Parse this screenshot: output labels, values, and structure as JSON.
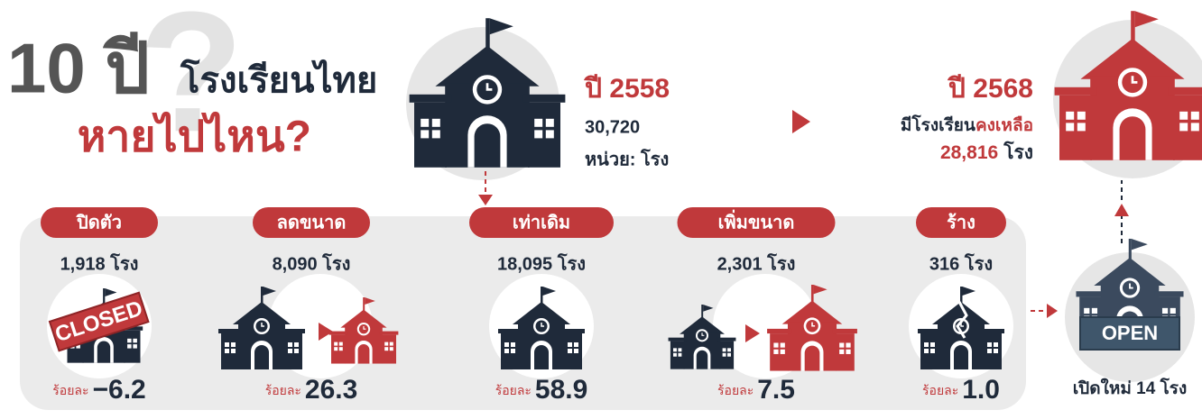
{
  "header": {
    "number": "10 ปี",
    "text": "โรงเรียนไทย",
    "question": "หายไปไหน?"
  },
  "start": {
    "year": "ปี 2558",
    "count": "30,720",
    "unit": "หน่วย: โรง"
  },
  "end": {
    "year": "ปี 2568",
    "label": "มีโรงเรียน",
    "label_highlight": "คงเหลือ",
    "count": "28,816",
    "unit": "โรง"
  },
  "categories": [
    {
      "name": "ปิดตัว",
      "count": "1,918 โรง",
      "percent_label": "ร้อยละ",
      "percent": "−6.2"
    },
    {
      "name": "ลดขนาด",
      "count": "8,090 โรง",
      "percent_label": "ร้อยละ",
      "percent": "26.3"
    },
    {
      "name": "เท่าเดิม",
      "count": "18,095 โรง",
      "percent_label": "ร้อยละ",
      "percent": "58.9"
    },
    {
      "name": "เพิ่มขนาด",
      "count": "2,301 โรง",
      "percent_label": "ร้อยละ",
      "percent": "7.5"
    },
    {
      "name": "ร้าง",
      "count": "316 โรง",
      "percent_label": "ร้อยละ",
      "percent": "1.0"
    }
  ],
  "closed_sign": "CLOSED",
  "open_sign": "OPEN",
  "new_schools": "เปิดใหม่ 14 โรง"
}
